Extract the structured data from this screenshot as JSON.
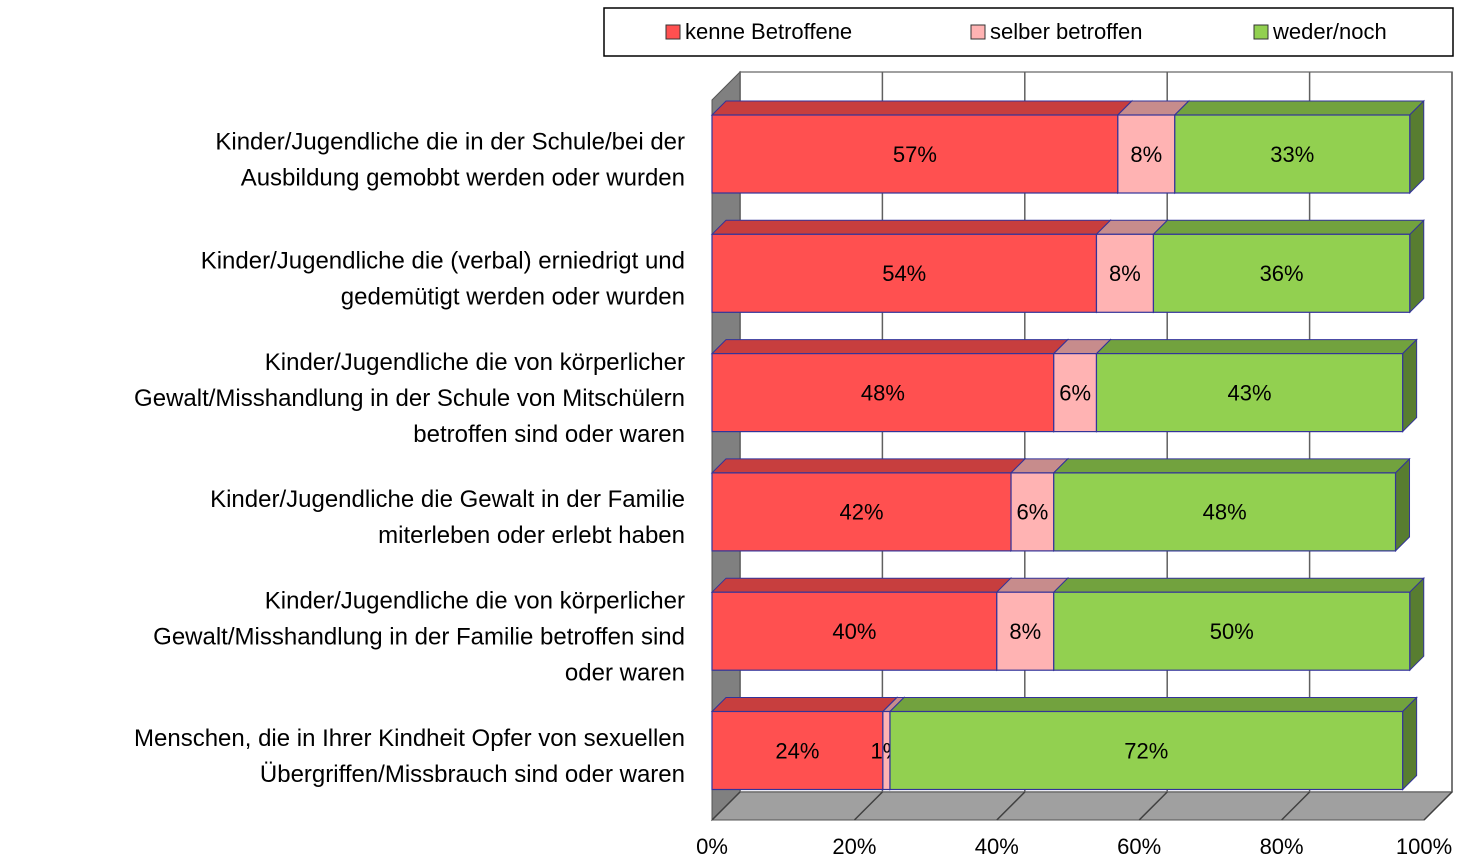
{
  "chart_data": {
    "type": "bar3d_stacked_horizontal",
    "categories": [
      [
        "Kinder/Jugendliche die in der Schule/bei der",
        "Ausbildung gemobbt werden oder wurden"
      ],
      [
        "Kinder/Jugendliche die (verbal) erniedrigt und",
        "gedemütigt werden oder wurden"
      ],
      [
        "Kinder/Jugendliche die von körperlicher",
        "Gewalt/Misshandlung in der Schule von Mitschülern",
        "betroffen sind oder waren"
      ],
      [
        "Kinder/Jugendliche die Gewalt in der Familie",
        "miterleben oder erlebt haben"
      ],
      [
        "Kinder/Jugendliche die von körperlicher",
        "Gewalt/Misshandlung in der Familie betroffen sind",
        "oder waren"
      ],
      [
        "Menschen, die in Ihrer Kindheit Opfer von sexuellen",
        "Übergriffen/Missbrauch sind oder waren"
      ]
    ],
    "series": [
      {
        "name": "kenne Betroffene",
        "color": "#ff5050",
        "values": [
          57,
          54,
          48,
          42,
          40,
          24
        ],
        "value_labels": [
          "57%",
          "54%",
          "48%",
          "42%",
          "40%",
          "24%"
        ]
      },
      {
        "name": "selber betroffen",
        "color": "#ffb3b3",
        "values": [
          8,
          8,
          6,
          6,
          8,
          1
        ],
        "value_labels": [
          "8%",
          "8%",
          "6%",
          "6%",
          "8%",
          "1%"
        ]
      },
      {
        "name": "weder/noch",
        "color": "#92d050",
        "values": [
          33,
          36,
          43,
          48,
          50,
          72
        ],
        "value_labels": [
          "33%",
          "36%",
          "43%",
          "48%",
          "50%",
          "72%"
        ]
      }
    ],
    "xlim": [
      0,
      100
    ],
    "xticks": [
      {
        "value": 0,
        "label": "0%"
      },
      {
        "value": 20,
        "label": "20%"
      },
      {
        "value": 40,
        "label": "40%"
      },
      {
        "value": 60,
        "label": "60%"
      },
      {
        "value": 80,
        "label": "80%"
      },
      {
        "value": 100,
        "label": "100%"
      }
    ],
    "grid": true,
    "legend": "top"
  }
}
